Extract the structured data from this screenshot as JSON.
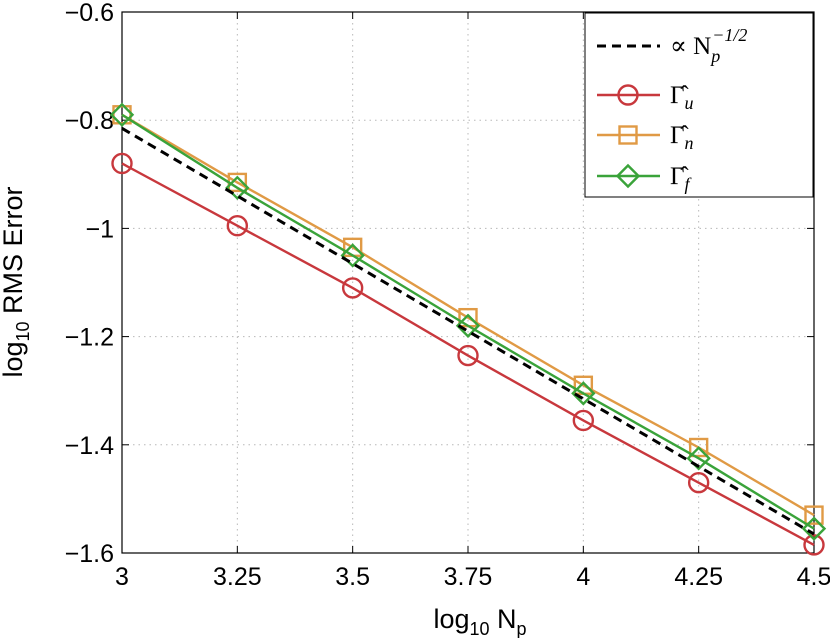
{
  "chart_data": {
    "type": "line",
    "title": "",
    "xlabel": {
      "base": "log",
      "sub": "10",
      "rest": " N",
      "rest_sub": "p"
    },
    "ylabel": {
      "base": "log",
      "sub": "10",
      "rest": " RMS Error"
    },
    "xlim": [
      3,
      4.5
    ],
    "ylim": [
      -1.6,
      -0.6
    ],
    "x": [
      3,
      3.25,
      3.5,
      3.75,
      4,
      4.25,
      4.5
    ],
    "x_tick_labels": [
      "3",
      "3.25",
      "3.5",
      "3.75",
      "4",
      "4.25",
      "4.5"
    ],
    "y_ticks": [
      -1.6,
      -1.4,
      -1.2,
      -1.0,
      -0.8,
      -0.6
    ],
    "y_tick_labels": [
      "−1.6",
      "−1.4",
      "−1.2",
      "−1",
      "−0.8",
      "−0.6"
    ],
    "grid": true,
    "legend_position": "top-right",
    "series": [
      {
        "name": "reference",
        "legend": {
          "prefix": "∝ N",
          "sub": "p",
          "sup": "−1/2"
        },
        "values": [
          -0.815,
          -0.94,
          -1.065,
          -1.19,
          -1.315,
          -1.44,
          -1.565
        ],
        "color": "#000000",
        "dashed": true,
        "marker": "none"
      },
      {
        "name": "Gamma_u",
        "legend": {
          "prefix": "Γ̂",
          "sub": "u"
        },
        "values": [
          -0.88,
          -0.995,
          -1.11,
          -1.235,
          -1.355,
          -1.47,
          -1.585
        ],
        "color": "#c8383d",
        "marker": "circle"
      },
      {
        "name": "Gamma_n",
        "legend": {
          "prefix": "Γ̂",
          "sub": "n"
        },
        "values": [
          -0.79,
          -0.915,
          -1.035,
          -1.165,
          -1.29,
          -1.405,
          -1.53
        ],
        "color": "#e09a45",
        "marker": "square"
      },
      {
        "name": "Gamma_f",
        "legend": {
          "prefix": "Γ̂",
          "sub": "f"
        },
        "values": [
          -0.79,
          -0.925,
          -1.05,
          -1.18,
          -1.305,
          -1.425,
          -1.555
        ],
        "color": "#3aa33a",
        "marker": "diamond"
      }
    ]
  }
}
